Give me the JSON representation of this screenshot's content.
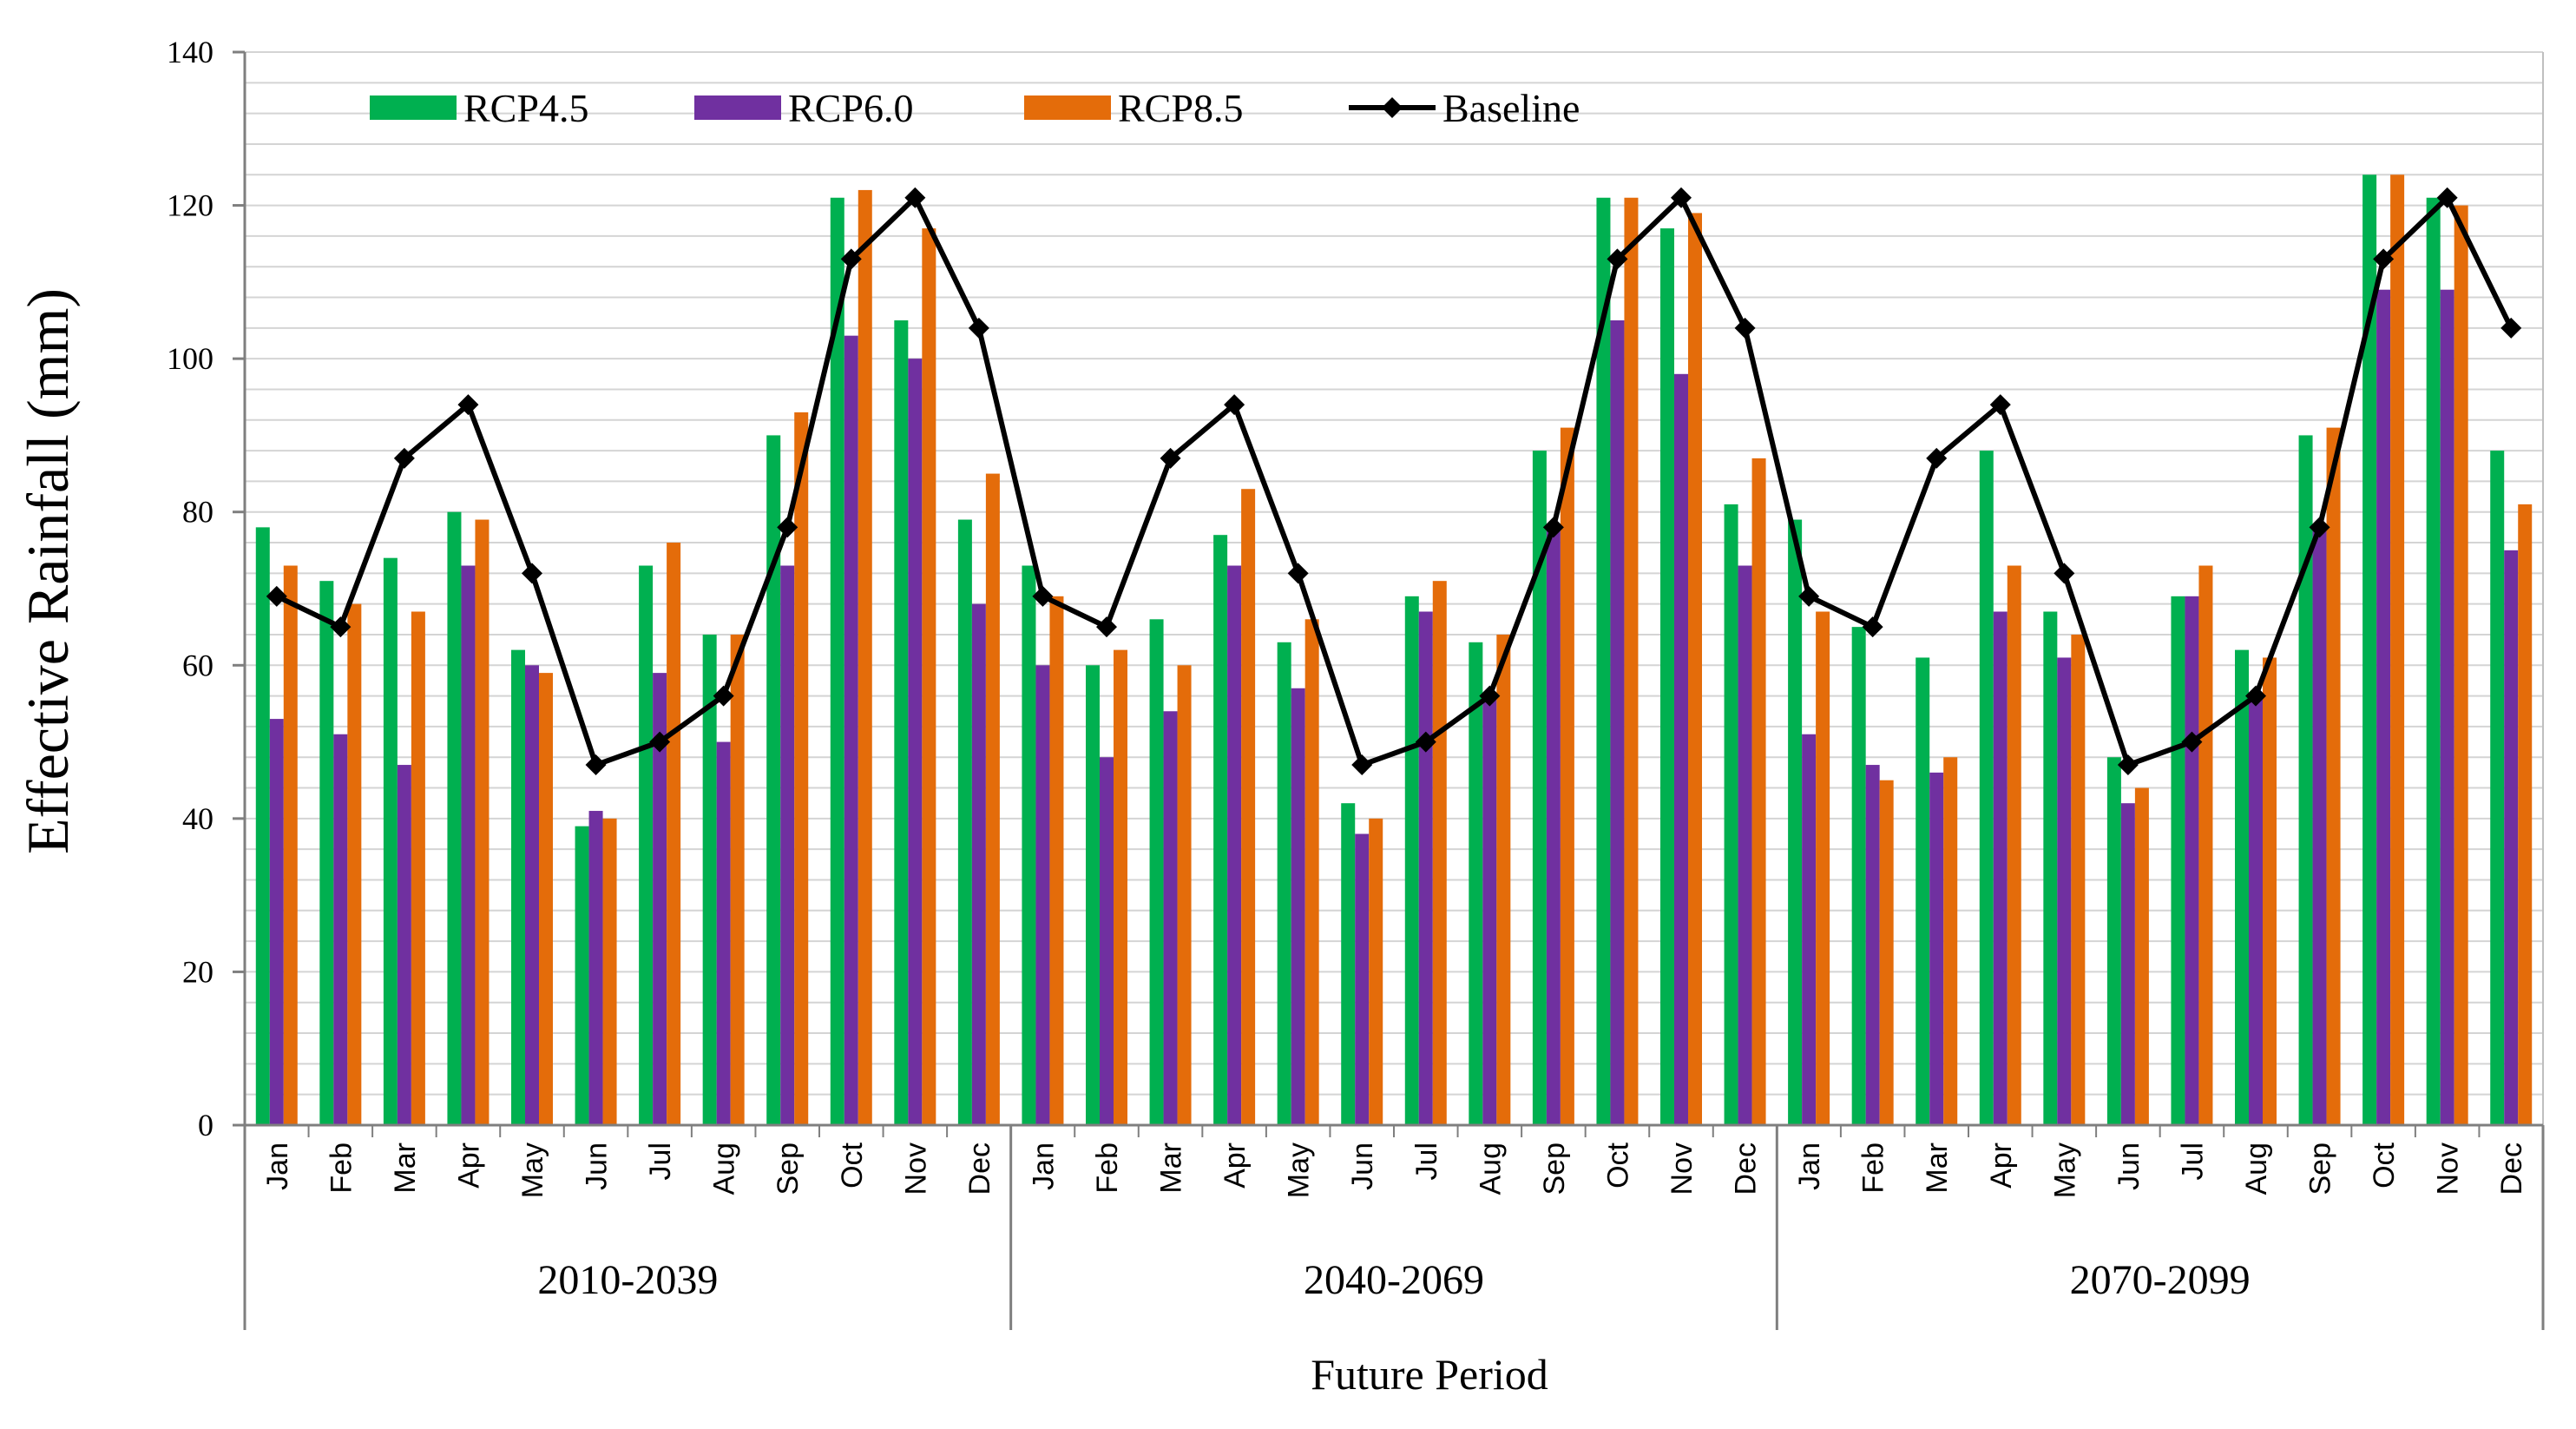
{
  "chart_data": {
    "type": "bar",
    "xlabel": "Future Period",
    "ylabel": "Effective Rainfall (mm)",
    "ylim": [
      0,
      140
    ],
    "yticks": [
      "0",
      "20",
      "40",
      "60",
      "80",
      "100",
      "120",
      "140"
    ],
    "grid": "horizontal",
    "legend_position": "top-left",
    "months": [
      "Jan",
      "Feb",
      "Mar",
      "Apr",
      "May",
      "Jun",
      "Jul",
      "Aug",
      "Sep",
      "Oct",
      "Nov",
      "Dec"
    ],
    "periods": [
      "2010-2039",
      "2040-2069",
      "2070-2099"
    ],
    "series": [
      {
        "name": "RCP4.5",
        "kind": "bar",
        "color": "#00B050",
        "values": [
          [
            78,
            71,
            74,
            80,
            62,
            39,
            73,
            64,
            90,
            121,
            105,
            79
          ],
          [
            73,
            60,
            66,
            77,
            63,
            42,
            69,
            63,
            88,
            121,
            117,
            81
          ],
          [
            79,
            65,
            61,
            88,
            67,
            48,
            69,
            62,
            90,
            124,
            121,
            88
          ]
        ]
      },
      {
        "name": "RCP6.0",
        "kind": "bar",
        "color": "#7030A0",
        "values": [
          [
            53,
            51,
            47,
            73,
            60,
            41,
            59,
            50,
            73,
            103,
            100,
            68
          ],
          [
            60,
            48,
            54,
            73,
            57,
            38,
            67,
            56,
            78,
            105,
            98,
            73
          ],
          [
            51,
            47,
            46,
            67,
            61,
            42,
            69,
            56,
            78,
            109,
            109,
            75
          ]
        ]
      },
      {
        "name": "RCP8.5",
        "kind": "bar",
        "color": "#E46C0A",
        "values": [
          [
            73,
            68,
            67,
            79,
            59,
            40,
            76,
            64,
            93,
            122,
            117,
            85
          ],
          [
            69,
            62,
            60,
            83,
            66,
            40,
            71,
            64,
            91,
            121,
            119,
            87
          ],
          [
            67,
            45,
            48,
            73,
            64,
            44,
            73,
            61,
            91,
            124,
            120,
            81
          ]
        ]
      },
      {
        "name": "Baseline",
        "kind": "line",
        "color": "#000000",
        "values": [
          69,
          65,
          87,
          94,
          72,
          47,
          50,
          56,
          78,
          113,
          121,
          104
        ]
      }
    ]
  }
}
